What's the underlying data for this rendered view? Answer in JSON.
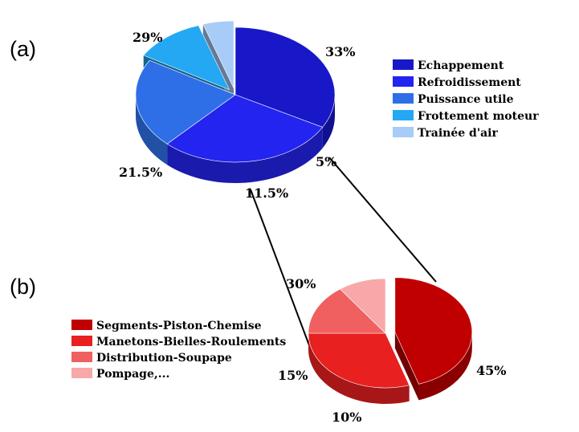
{
  "chart_data": [
    {
      "type": "pie",
      "panel_label": "(a)",
      "categories": [
        "Echappement",
        "Refroidissement",
        "Puissance utile",
        "Frottement moteur",
        "Trainée d'air"
      ],
      "values": [
        33,
        29,
        21.5,
        11.5,
        5
      ],
      "value_labels": [
        "33%",
        "29%",
        "21.5%",
        "11.5%",
        "5%"
      ],
      "colors": [
        "#1818c8",
        "#2424f0",
        "#2e6fe8",
        "#24a8f4",
        "#a8ccf8"
      ],
      "exploded": [
        "Frottement moteur",
        "Trainée d'air"
      ],
      "legend": "right"
    },
    {
      "type": "pie",
      "panel_label": "(b)",
      "categories": [
        "Segments-Piston-Chemise",
        "Manetons-Bielles-Roulements",
        "Distribution-Soupape",
        "Pompage,..."
      ],
      "values": [
        45,
        30,
        15,
        10
      ],
      "value_labels": [
        "45%",
        "30%",
        "15%",
        "10%"
      ],
      "colors": [
        "#c00000",
        "#e82020",
        "#f06060",
        "#f8a8a8"
      ],
      "exploded": [
        "Segments-Piston-Chemise"
      ],
      "legend": "left",
      "detail_of": "Frottement moteur"
    }
  ]
}
